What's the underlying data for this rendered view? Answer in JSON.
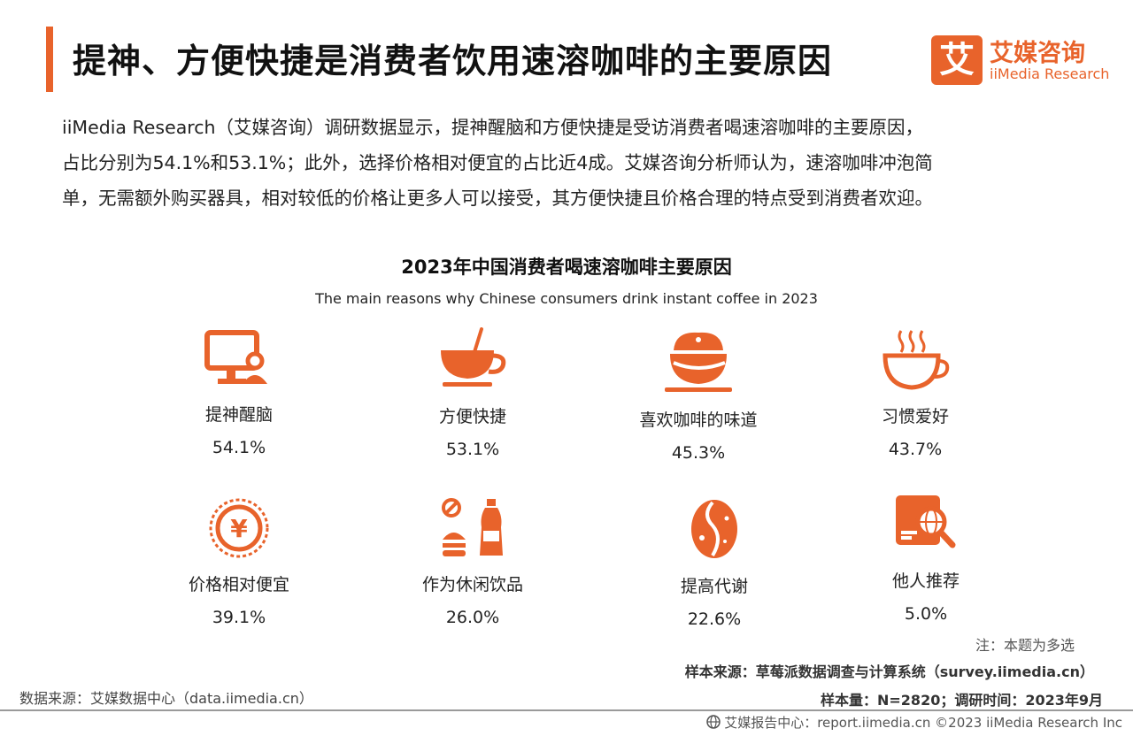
{
  "header": {
    "title": "提神、方便快捷是消费者饮用速溶咖啡的主要原因",
    "logo": {
      "mark": "艾",
      "name_cn": "艾媒咨询",
      "name_en": "iiMedia Research"
    }
  },
  "intro": [
    "iiMedia Research（艾媒咨询）调研数据显示，提神醒脑和方便快捷是受访消费者喝速溶咖啡的主要原因，",
    "占比分别为54.1%和53.1%；此外，选择价格相对便宜的占比近4成。艾媒咨询分析师认为，速溶咖啡冲泡简",
    "单，无需额外购买器具，相对较低的价格让更多人可以接受，其方便快捷且价格合理的特点受到消费者欢迎。"
  ],
  "chart_data": {
    "type": "table",
    "title": "2023年中国消费者喝速溶咖啡主要原因",
    "subtitle": "The main reasons why Chinese consumers drink instant coffee in 2023",
    "categories": [
      "提神醒脑",
      "方便快捷",
      "喜欢咖啡的味道",
      "习惯爱好",
      "价格相对便宜",
      "作为休闲饮品",
      "提高代谢",
      "他人推荐"
    ],
    "values": [
      54.1,
      53.1,
      45.3,
      43.7,
      39.1,
      26.0,
      22.6,
      5.0
    ],
    "value_labels": [
      "54.1%",
      "53.1%",
      "45.3%",
      "43.7%",
      "39.1%",
      "26.0%",
      "22.6%",
      "5.0%"
    ],
    "icons": [
      "computer-user-icon",
      "coffee-cup-spoon-icon",
      "coffee-cup-face-icon",
      "steaming-cup-icon",
      "yuan-badge-icon",
      "snack-drink-icon",
      "coffee-bean-icon",
      "search-globe-icon"
    ],
    "accent_color": "#e8632b"
  },
  "notes": {
    "note": "注：本题为多选",
    "sample_source": "样本来源：草莓派数据调查与计算系统（survey.iimedia.cn）",
    "sample_size": "样本量：N=2820；调研时间：2023年9月",
    "data_source": "数据来源：艾媒数据中心（data.iimedia.cn）"
  },
  "footer": {
    "text": "艾媒报告中心：report.iimedia.cn  ©2023  iiMedia Research  Inc"
  }
}
